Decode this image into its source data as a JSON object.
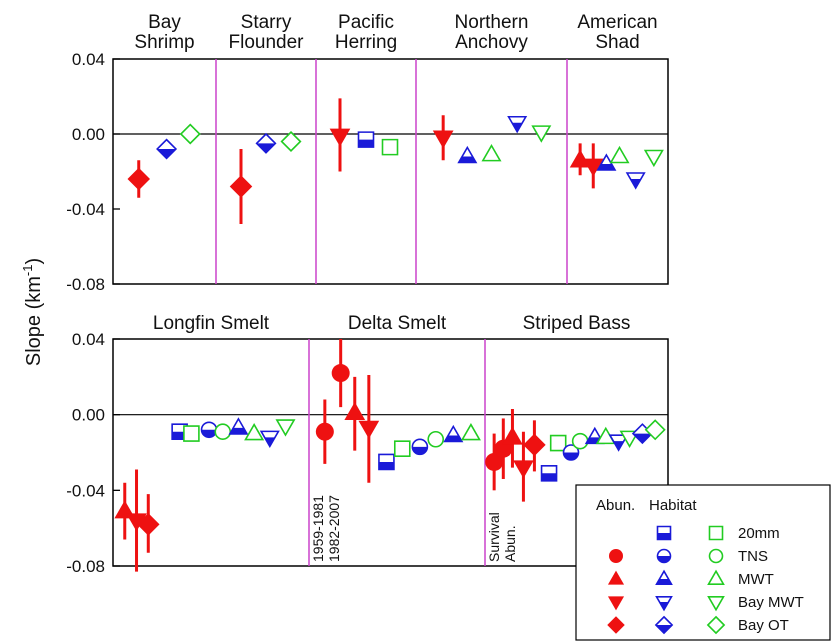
{
  "chart_data": {
    "type": "scatter",
    "ylabel": "Slope (km",
    "ylabel_sup": "-1",
    "ylabel_suffix": ")",
    "colors": {
      "abundance": "#ee1111",
      "habitat_blue": "#1a1ad8",
      "habitat_green": "#22cc22",
      "divider": "#cc44cc"
    },
    "panels": [
      {
        "id": "top",
        "ylim": [
          -0.08,
          0.04
        ],
        "yticks": [
          "0.04",
          "0.00",
          "-0.04",
          "-0.08"
        ],
        "yvalues": [
          0.04,
          0.0,
          -0.04,
          -0.08
        ],
        "groups": [
          {
            "name_lines": [
              "Bay",
              "Shrimp"
            ]
          },
          {
            "name_lines": [
              "Starry",
              "Flounder"
            ]
          },
          {
            "name_lines": [
              "Pacific",
              "Herring"
            ]
          },
          {
            "name_lines": [
              "Northern",
              "Anchovy"
            ]
          },
          {
            "name_lines": [
              "American",
              "Shad"
            ]
          }
        ],
        "points": [
          {
            "group": 0,
            "x": 0.25,
            "y": -0.024,
            "lo": -0.034,
            "hi": -0.014,
            "shape": "diamond",
            "kind": "abun"
          },
          {
            "group": 0,
            "x": 0.52,
            "y": -0.008,
            "shape": "diamond",
            "kind": "habitat_blue"
          },
          {
            "group": 0,
            "x": 0.75,
            "y": 0.0,
            "shape": "diamond",
            "kind": "habitat_green"
          },
          {
            "group": 1,
            "x": 0.25,
            "y": -0.028,
            "lo": -0.048,
            "hi": -0.008,
            "shape": "diamond",
            "kind": "abun"
          },
          {
            "group": 1,
            "x": 0.5,
            "y": -0.005,
            "shape": "diamond",
            "kind": "habitat_blue"
          },
          {
            "group": 1,
            "x": 0.75,
            "y": -0.004,
            "shape": "diamond",
            "kind": "habitat_green"
          },
          {
            "group": 2,
            "x": 0.24,
            "y": -0.001,
            "lo": -0.02,
            "hi": 0.019,
            "shape": "tri-down",
            "kind": "abun"
          },
          {
            "group": 2,
            "x": 0.5,
            "y": -0.003,
            "shape": "square",
            "kind": "habitat_blue"
          },
          {
            "group": 2,
            "x": 0.74,
            "y": -0.007,
            "shape": "square",
            "kind": "habitat_green"
          },
          {
            "group": 3,
            "x": 0.18,
            "y": -0.002,
            "lo": -0.014,
            "hi": 0.01,
            "shape": "tri-down",
            "kind": "abun"
          },
          {
            "group": 3,
            "x": 0.34,
            "y": -0.012,
            "shape": "tri-up",
            "kind": "habitat_blue"
          },
          {
            "group": 3,
            "x": 0.5,
            "y": -0.011,
            "shape": "tri-up",
            "kind": "habitat_green"
          },
          {
            "group": 3,
            "x": 0.67,
            "y": 0.006,
            "shape": "tri-down",
            "kind": "habitat_blue"
          },
          {
            "group": 3,
            "x": 0.83,
            "y": 0.001,
            "shape": "tri-down",
            "kind": "habitat_green"
          },
          {
            "group": 4,
            "x": 0.13,
            "y": -0.014,
            "lo": -0.022,
            "hi": -0.005,
            "shape": "tri-up",
            "kind": "abun"
          },
          {
            "group": 4,
            "x": 0.26,
            "y": -0.017,
            "lo": -0.029,
            "hi": -0.005,
            "shape": "tri-down",
            "kind": "abun"
          },
          {
            "group": 4,
            "x": 0.39,
            "y": -0.016,
            "shape": "tri-up",
            "kind": "habitat_blue"
          },
          {
            "group": 4,
            "x": 0.52,
            "y": -0.012,
            "shape": "tri-up",
            "kind": "habitat_green"
          },
          {
            "group": 4,
            "x": 0.68,
            "y": -0.024,
            "shape": "tri-down",
            "kind": "habitat_blue"
          },
          {
            "group": 4,
            "x": 0.86,
            "y": -0.012,
            "shape": "tri-down",
            "kind": "habitat_green"
          }
        ]
      },
      {
        "id": "bottom",
        "ylim": [
          -0.08,
          0.04
        ],
        "yticks": [
          "0.04",
          "0.00",
          "-0.04",
          "-0.08"
        ],
        "yvalues": [
          0.04,
          0.0,
          -0.04,
          -0.08
        ],
        "groups": [
          {
            "name_lines": [
              "Longfin Smelt"
            ]
          },
          {
            "name_lines": [
              "Delta Smelt"
            ]
          },
          {
            "name_lines": [
              "Striped Bass"
            ]
          }
        ],
        "points": [
          {
            "group": 0,
            "x": 0.06,
            "y": -0.051,
            "lo": -0.066,
            "hi": -0.036,
            "shape": "tri-up",
            "kind": "abun"
          },
          {
            "group": 0,
            "x": 0.12,
            "y": -0.056,
            "lo": -0.083,
            "hi": -0.029,
            "shape": "tri-down",
            "kind": "abun"
          },
          {
            "group": 0,
            "x": 0.18,
            "y": -0.058,
            "lo": -0.073,
            "hi": -0.042,
            "shape": "diamond",
            "kind": "abun"
          },
          {
            "group": 0,
            "x": 0.34,
            "y": -0.009,
            "shape": "square",
            "kind": "habitat_blue"
          },
          {
            "group": 0,
            "x": 0.4,
            "y": -0.01,
            "shape": "square",
            "kind": "habitat_green"
          },
          {
            "group": 0,
            "x": 0.49,
            "y": -0.008,
            "shape": "circle",
            "kind": "habitat_blue"
          },
          {
            "group": 0,
            "x": 0.56,
            "y": -0.009,
            "shape": "circle",
            "kind": "habitat_green"
          },
          {
            "group": 0,
            "x": 0.64,
            "y": -0.007,
            "shape": "tri-up",
            "kind": "habitat_blue"
          },
          {
            "group": 0,
            "x": 0.72,
            "y": -0.01,
            "shape": "tri-up",
            "kind": "habitat_green"
          },
          {
            "group": 0,
            "x": 0.8,
            "y": -0.012,
            "shape": "tri-down",
            "kind": "habitat_blue"
          },
          {
            "group": 0,
            "x": 0.88,
            "y": -0.006,
            "shape": "tri-down",
            "kind": "habitat_green"
          },
          {
            "group": 1,
            "x": 0.09,
            "y": -0.009,
            "lo": -0.026,
            "hi": 0.008,
            "shape": "circle",
            "kind": "abun"
          },
          {
            "group": 1,
            "x": 0.18,
            "y": 0.022,
            "lo": 0.004,
            "hi": 0.04,
            "shape": "circle",
            "kind": "abun"
          },
          {
            "group": 1,
            "x": 0.26,
            "y": 0.001,
            "lo": -0.019,
            "hi": 0.02,
            "shape": "tri-up",
            "kind": "abun"
          },
          {
            "group": 1,
            "x": 0.34,
            "y": -0.007,
            "lo": -0.036,
            "hi": 0.021,
            "shape": "tri-down",
            "kind": "abun"
          },
          {
            "group": 1,
            "x": 0.44,
            "y": -0.025,
            "shape": "square",
            "kind": "habitat_blue"
          },
          {
            "group": 1,
            "x": 0.53,
            "y": -0.018,
            "shape": "square",
            "kind": "habitat_green"
          },
          {
            "group": 1,
            "x": 0.63,
            "y": -0.017,
            "shape": "circle",
            "kind": "habitat_blue"
          },
          {
            "group": 1,
            "x": 0.72,
            "y": -0.013,
            "shape": "circle",
            "kind": "habitat_green"
          },
          {
            "group": 1,
            "x": 0.82,
            "y": -0.011,
            "shape": "tri-up",
            "kind": "habitat_blue"
          },
          {
            "group": 1,
            "x": 0.92,
            "y": -0.01,
            "shape": "tri-up",
            "kind": "habitat_green"
          },
          {
            "group": 2,
            "x": 0.05,
            "y": -0.025,
            "lo": -0.04,
            "hi": -0.01,
            "shape": "circle",
            "kind": "abun"
          },
          {
            "group": 2,
            "x": 0.1,
            "y": -0.018,
            "lo": -0.034,
            "hi": -0.002,
            "shape": "circle",
            "kind": "abun"
          },
          {
            "group": 2,
            "x": 0.15,
            "y": -0.012,
            "lo": -0.028,
            "hi": 0.003,
            "shape": "tri-up",
            "kind": "abun"
          },
          {
            "group": 2,
            "x": 0.21,
            "y": -0.028,
            "lo": -0.046,
            "hi": -0.009,
            "shape": "tri-down",
            "kind": "abun"
          },
          {
            "group": 2,
            "x": 0.27,
            "y": -0.016,
            "lo": -0.03,
            "hi": -0.003,
            "shape": "diamond",
            "kind": "abun"
          },
          {
            "group": 2,
            "x": 0.35,
            "y": -0.031,
            "shape": "square",
            "kind": "habitat_blue"
          },
          {
            "group": 2,
            "x": 0.4,
            "y": -0.015,
            "shape": "square",
            "kind": "habitat_green"
          },
          {
            "group": 2,
            "x": 0.47,
            "y": -0.02,
            "shape": "circle",
            "kind": "habitat_blue"
          },
          {
            "group": 2,
            "x": 0.52,
            "y": -0.014,
            "shape": "circle",
            "kind": "habitat_green"
          },
          {
            "group": 2,
            "x": 0.6,
            "y": -0.012,
            "shape": "tri-up",
            "kind": "habitat_blue"
          },
          {
            "group": 2,
            "x": 0.66,
            "y": -0.012,
            "shape": "tri-up",
            "kind": "habitat_green"
          },
          {
            "group": 2,
            "x": 0.73,
            "y": -0.014,
            "shape": "tri-down",
            "kind": "habitat_blue"
          },
          {
            "group": 2,
            "x": 0.79,
            "y": -0.012,
            "shape": "tri-down",
            "kind": "habitat_green"
          },
          {
            "group": 2,
            "x": 0.86,
            "y": -0.01,
            "shape": "diamond",
            "kind": "habitat_blue"
          },
          {
            "group": 2,
            "x": 0.93,
            "y": -0.008,
            "shape": "diamond",
            "kind": "habitat_green"
          }
        ],
        "vertical_labels": [
          {
            "group": 1,
            "lines": [
              "1959-1981",
              "1982-2007"
            ]
          },
          {
            "group": 2,
            "lines": [
              "Survival",
              "Abun."
            ]
          }
        ]
      }
    ],
    "legend": {
      "position": "bottom-right",
      "header_abun": "Abun.",
      "header_habitat": "Habitat",
      "rows": [
        {
          "label": "20mm",
          "shape": "square",
          "abun": false
        },
        {
          "label": "TNS",
          "shape": "circle",
          "abun": true
        },
        {
          "label": "MWT",
          "shape": "tri-up",
          "abun": true
        },
        {
          "label": "Bay MWT",
          "shape": "tri-down",
          "abun": true
        },
        {
          "label": "Bay OT",
          "shape": "diamond",
          "abun": true
        }
      ]
    }
  }
}
